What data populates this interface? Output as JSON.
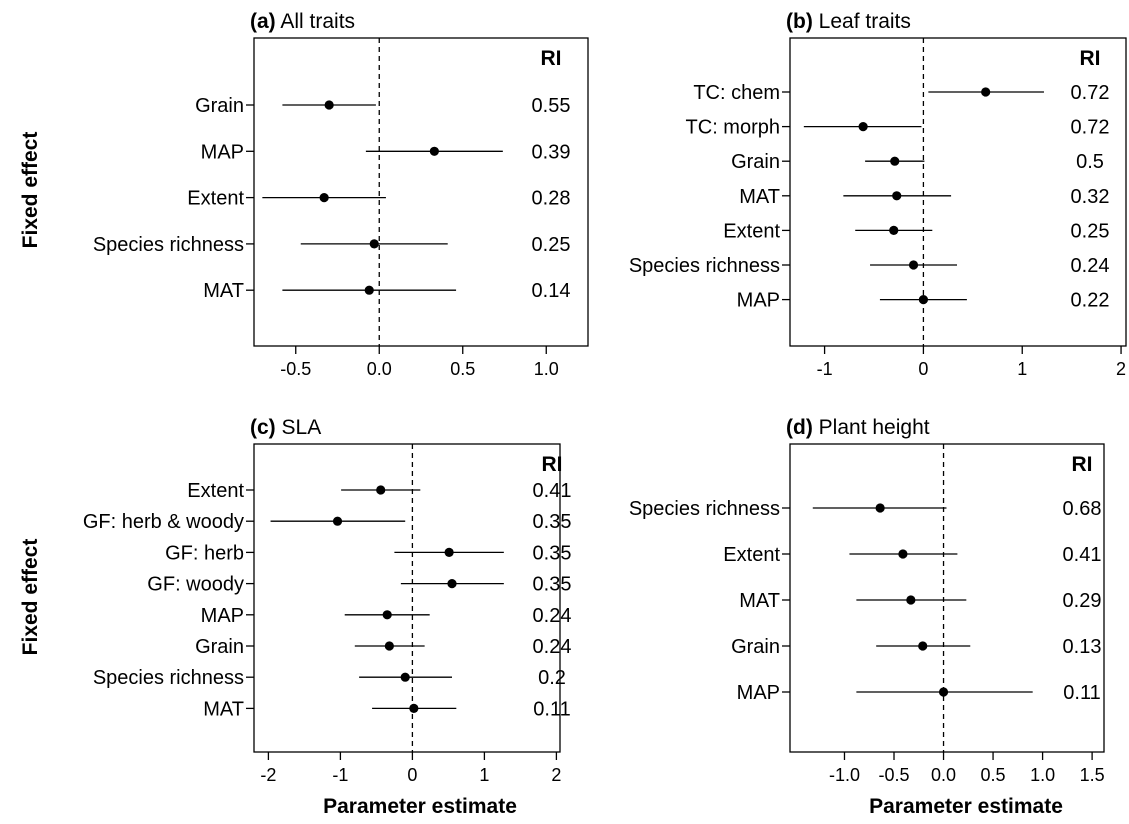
{
  "figure": {
    "y_axis_label": "Fixed effect",
    "x_axis_label": "Parameter estimate"
  },
  "chart_data": [
    {
      "type": "forest",
      "panel": "a",
      "panel_letter": "(a)",
      "title": "All traits",
      "ri_header": "RI",
      "xlim": [
        -0.75,
        1.25
      ],
      "xticks": [
        -0.5,
        0.0,
        0.5,
        1.0
      ],
      "xtick_labels": [
        "-0.5",
        "0.0",
        "0.5",
        "1.0"
      ],
      "rows": [
        {
          "label": "Grain",
          "estimate": -0.3,
          "ci": [
            -0.58,
            -0.02
          ],
          "ri": "0.55"
        },
        {
          "label": "MAP",
          "estimate": 0.33,
          "ci": [
            -0.08,
            0.74
          ],
          "ri": "0.39"
        },
        {
          "label": "Extent",
          "estimate": -0.33,
          "ci": [
            -0.7,
            0.04
          ],
          "ri": "0.28"
        },
        {
          "label": "Species richness",
          "estimate": -0.03,
          "ci": [
            -0.47,
            0.41
          ],
          "ri": "0.25"
        },
        {
          "label": "MAT",
          "estimate": -0.06,
          "ci": [
            -0.58,
            0.46
          ],
          "ri": "0.14"
        }
      ]
    },
    {
      "type": "forest",
      "panel": "b",
      "panel_letter": "(b)",
      "title": "Leaf traits",
      "ri_header": "RI",
      "xlim": [
        -1.35,
        2.05
      ],
      "xticks": [
        -1,
        0,
        1,
        2
      ],
      "xtick_labels": [
        "-1",
        "0",
        "1",
        "2"
      ],
      "rows": [
        {
          "label": "TC: chem",
          "estimate": 0.63,
          "ci": [
            0.05,
            1.22
          ],
          "ri": "0.72"
        },
        {
          "label": "TC: morph",
          "estimate": -0.61,
          "ci": [
            -1.21,
            -0.02
          ],
          "ri": "0.72"
        },
        {
          "label": "Grain",
          "estimate": -0.29,
          "ci": [
            -0.59,
            0.01
          ],
          "ri": "0.5"
        },
        {
          "label": "MAT",
          "estimate": -0.27,
          "ci": [
            -0.81,
            0.28
          ],
          "ri": "0.32"
        },
        {
          "label": "Extent",
          "estimate": -0.3,
          "ci": [
            -0.69,
            0.09
          ],
          "ri": "0.25"
        },
        {
          "label": "Species richness",
          "estimate": -0.1,
          "ci": [
            -0.54,
            0.34
          ],
          "ri": "0.24"
        },
        {
          "label": "MAP",
          "estimate": 0.0,
          "ci": [
            -0.44,
            0.44
          ],
          "ri": "0.22"
        }
      ]
    },
    {
      "type": "forest",
      "panel": "c",
      "panel_letter": "(c)",
      "title": "SLA",
      "ri_header": "RI",
      "xlim": [
        -2.2,
        2.05
      ],
      "xticks": [
        -2,
        -1,
        0,
        1,
        2
      ],
      "xtick_labels": [
        "-2",
        "-1",
        "0",
        "1",
        "2"
      ],
      "rows": [
        {
          "label": "Extent",
          "estimate": -0.44,
          "ci": [
            -0.99,
            0.11
          ],
          "ri": "0.41"
        },
        {
          "label": "GF: herb & woody",
          "estimate": -1.04,
          "ci": [
            -1.97,
            -0.1
          ],
          "ri": "0.35"
        },
        {
          "label": "GF: herb",
          "estimate": 0.51,
          "ci": [
            -0.25,
            1.27
          ],
          "ri": "0.35"
        },
        {
          "label": "GF: woody",
          "estimate": 0.55,
          "ci": [
            -0.16,
            1.27
          ],
          "ri": "0.35"
        },
        {
          "label": "MAP",
          "estimate": -0.35,
          "ci": [
            -0.94,
            0.24
          ],
          "ri": "0.24"
        },
        {
          "label": "Grain",
          "estimate": -0.32,
          "ci": [
            -0.8,
            0.17
          ],
          "ri": "0.24"
        },
        {
          "label": "Species richness",
          "estimate": -0.1,
          "ci": [
            -0.74,
            0.55
          ],
          "ri": "0.2"
        },
        {
          "label": "MAT",
          "estimate": 0.02,
          "ci": [
            -0.56,
            0.61
          ],
          "ri": "0.11"
        }
      ]
    },
    {
      "type": "forest",
      "panel": "d",
      "panel_letter": "(d)",
      "title": "Plant height",
      "ri_header": "RI",
      "xlim": [
        -1.55,
        1.62
      ],
      "xticks": [
        -1.0,
        -0.5,
        0.0,
        0.5,
        1.0,
        1.5
      ],
      "xtick_labels": [
        "-1.0",
        "-0.5",
        "0.0",
        "0.5",
        "1.0",
        "1.5"
      ],
      "rows": [
        {
          "label": "Species richness",
          "estimate": -0.64,
          "ci": [
            -1.32,
            0.03
          ],
          "ri": "0.68"
        },
        {
          "label": "Extent",
          "estimate": -0.41,
          "ci": [
            -0.95,
            0.14
          ],
          "ri": "0.41"
        },
        {
          "label": "MAT",
          "estimate": -0.33,
          "ci": [
            -0.88,
            0.23
          ],
          "ri": "0.29"
        },
        {
          "label": "Grain",
          "estimate": -0.21,
          "ci": [
            -0.68,
            0.27
          ],
          "ri": "0.13"
        },
        {
          "label": "MAP",
          "estimate": 0.0,
          "ci": [
            -0.88,
            0.9
          ],
          "ri": "0.11"
        }
      ]
    }
  ]
}
